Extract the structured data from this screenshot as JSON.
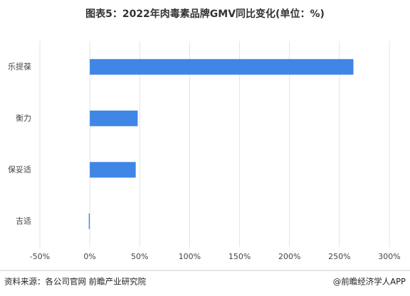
{
  "chart_data": {
    "type": "hbar",
    "title": "图表5：2022年肉毒素品牌GMV同比变化(单位：%)",
    "categories": [
      "乐提葆",
      "衡力",
      "保妥适",
      "吉适"
    ],
    "values": [
      264,
      48,
      46,
      -1
    ],
    "color": "#3f86e6",
    "xlim": [
      -50,
      300
    ],
    "xticks": [
      {
        "value": -50,
        "label": "-50%"
      },
      {
        "value": 0,
        "label": "0%"
      },
      {
        "value": 50,
        "label": "50%"
      },
      {
        "value": 100,
        "label": "100%"
      },
      {
        "value": 150,
        "label": "150%"
      },
      {
        "value": 200,
        "label": "200%"
      },
      {
        "value": 250,
        "label": "250%"
      },
      {
        "value": 300,
        "label": "300%"
      }
    ],
    "grid": true,
    "source": "资料来源：各公司官网 前瞻产业研究院",
    "credit": "@前瞻经济学人APP"
  }
}
